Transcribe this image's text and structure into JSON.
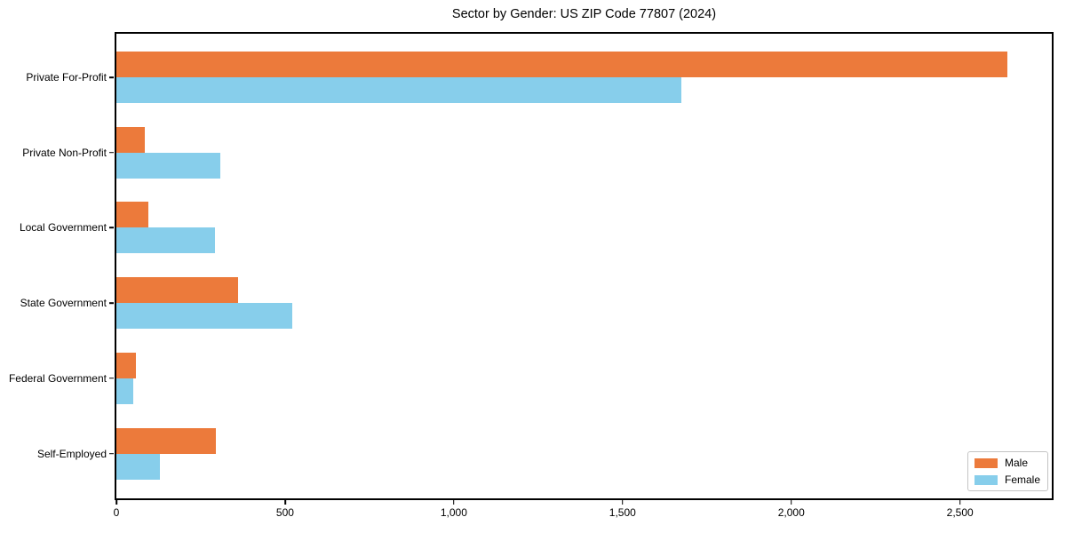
{
  "chart_data": {
    "type": "bar",
    "orientation": "horizontal",
    "title": "Sector by Gender: US ZIP Code 77807 (2024)",
    "categories": [
      "Private For-Profit",
      "Private Non-Profit",
      "Local Government",
      "State Government",
      "Federal Government",
      "Self-Employed"
    ],
    "series": [
      {
        "name": "Male",
        "color": "#ec7a3b",
        "values": [
          2640,
          84,
          94,
          360,
          58,
          296
        ]
      },
      {
        "name": "Female",
        "color": "#87ceeb",
        "values": [
          1674,
          307,
          291,
          522,
          50,
          128
        ]
      }
    ],
    "xlabel": "",
    "ylabel": "",
    "xlim": [
      0,
      2772
    ],
    "x_ticks": [
      0,
      500,
      1000,
      1500,
      2000,
      2500
    ],
    "x_tick_labels": [
      "0",
      "500",
      "1,000",
      "1,500",
      "2,000",
      "2,500"
    ],
    "grid": false,
    "legend": {
      "position": "lower right",
      "items": [
        "Male",
        "Female"
      ]
    },
    "colors": {
      "male": "#ec7a3b",
      "female": "#87ceeb",
      "spine": "#000000",
      "background": "#ffffff"
    }
  }
}
